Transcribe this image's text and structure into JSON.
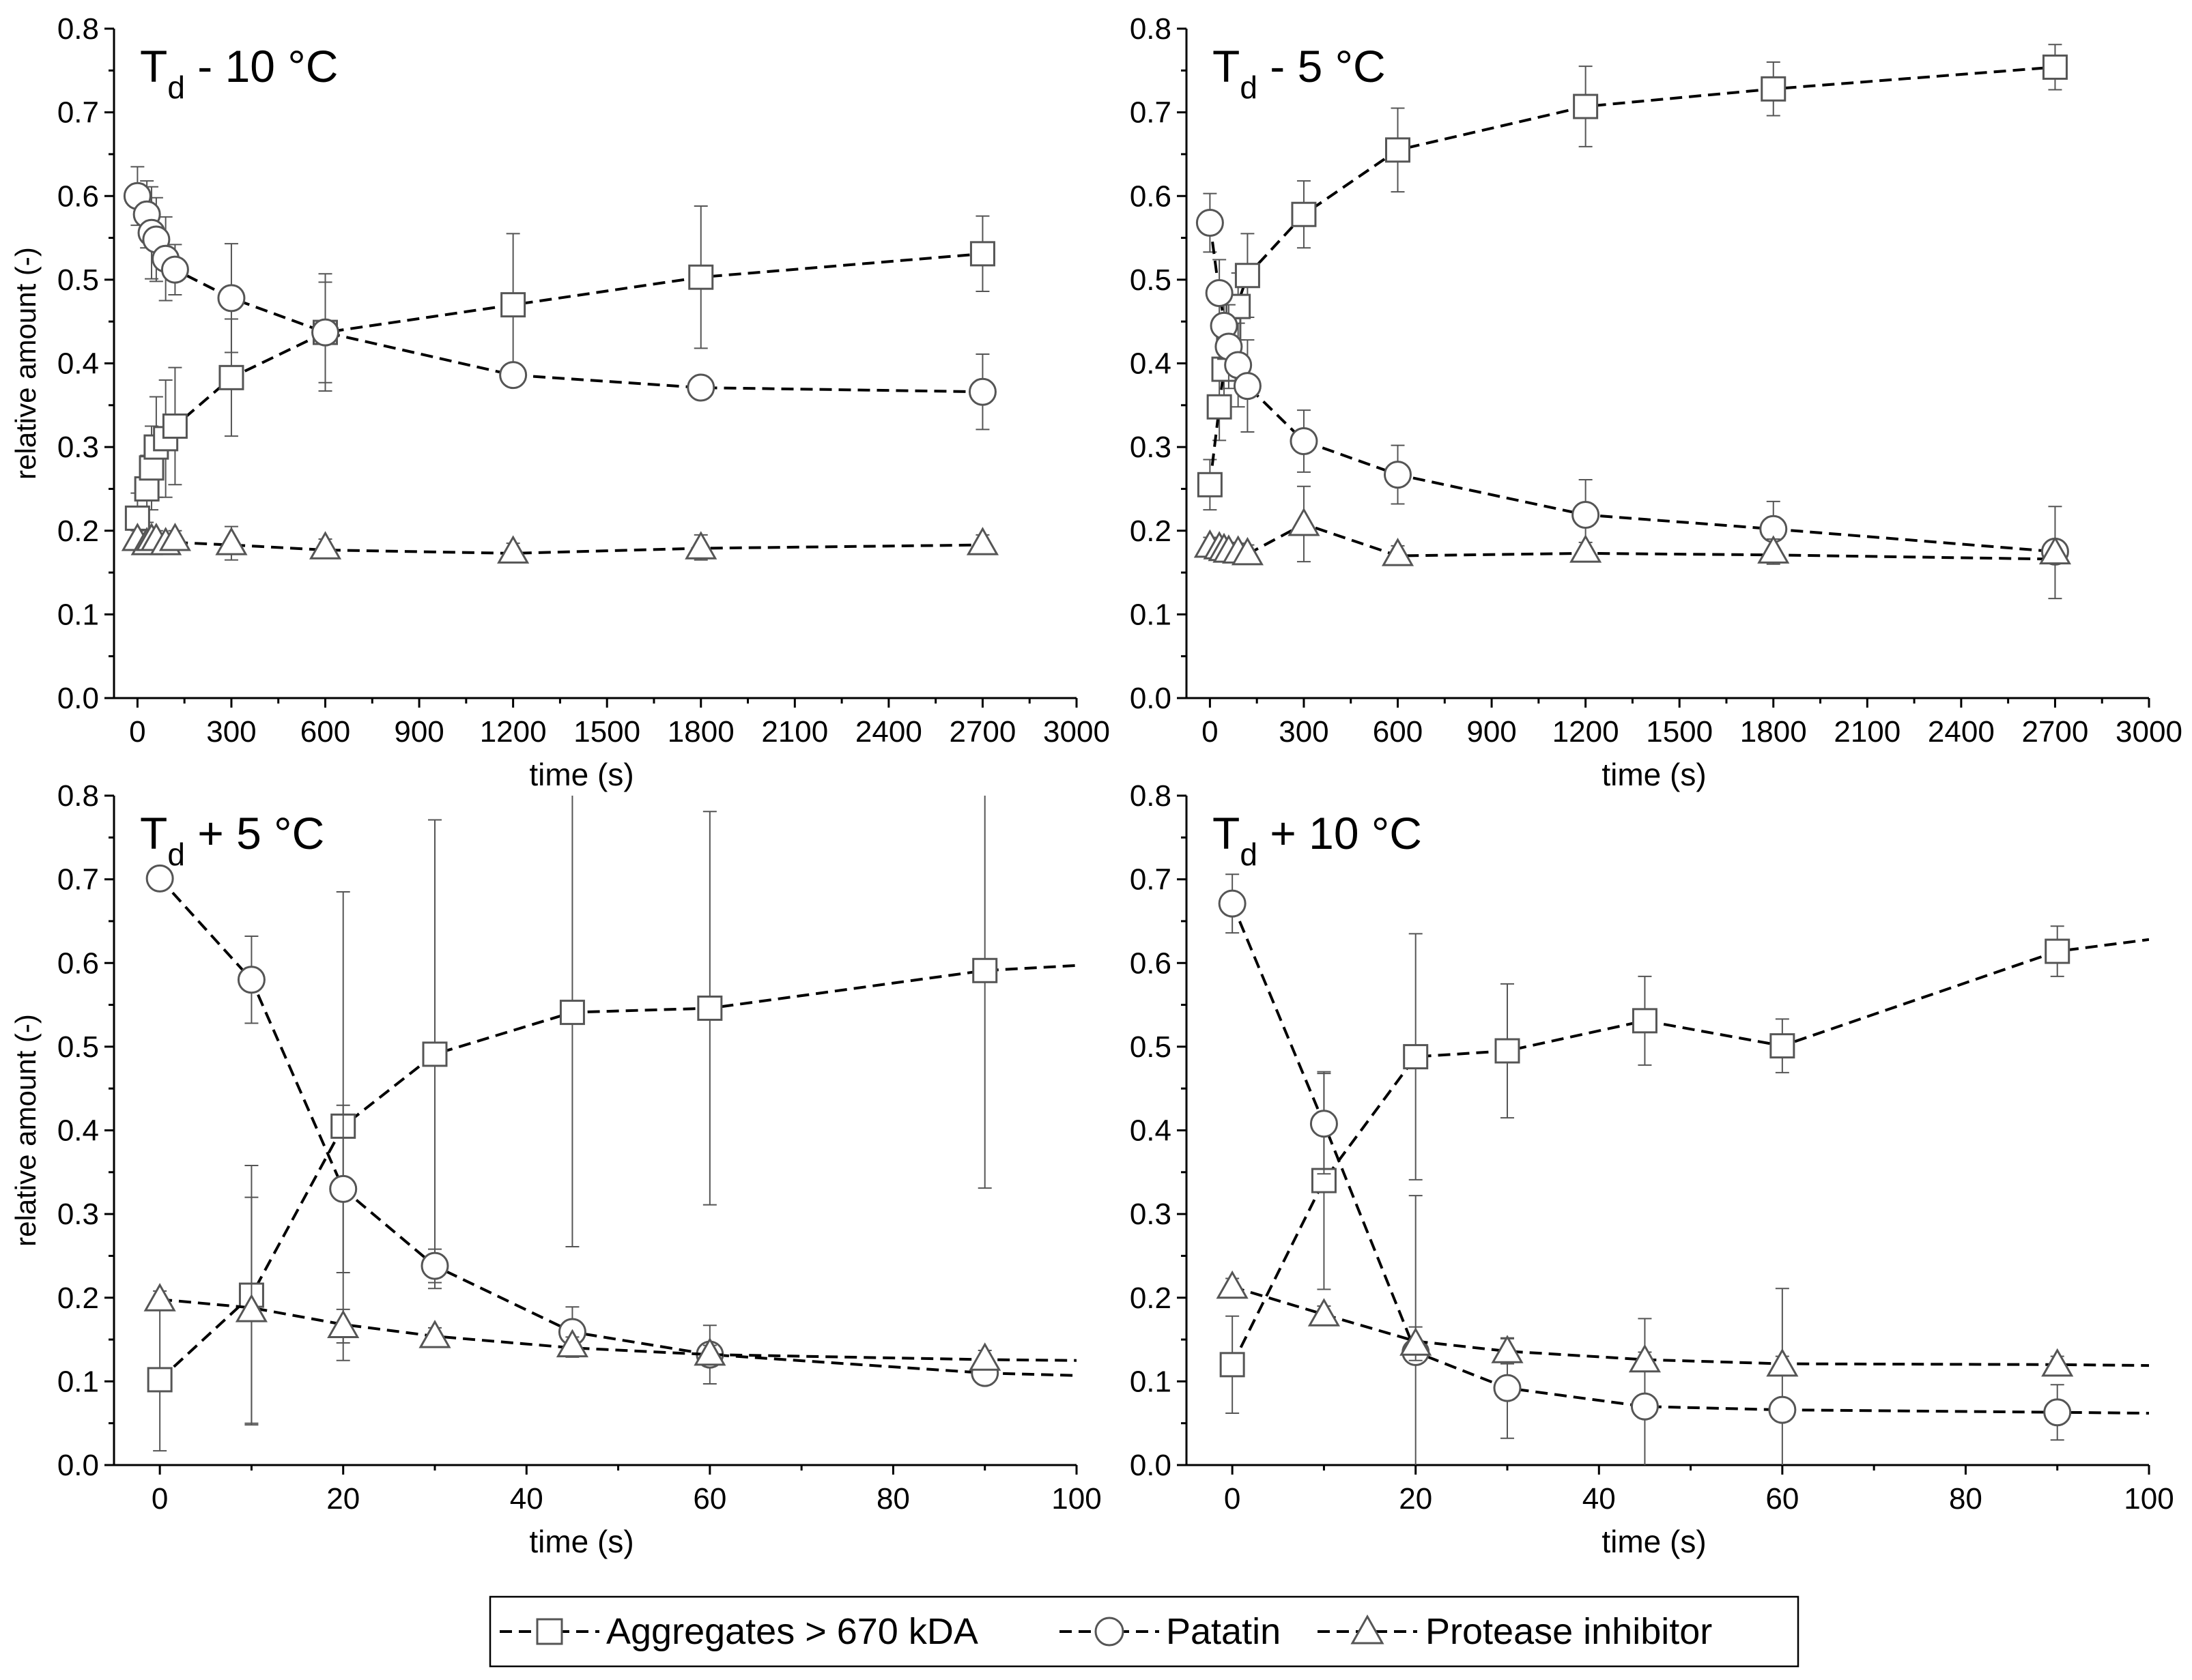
{
  "legend": {
    "items": [
      {
        "label": "Aggregates > 670 kDA",
        "marker": "square"
      },
      {
        "label": "Patatin",
        "marker": "circle"
      },
      {
        "label": "Protease inhibitor",
        "marker": "triangle"
      }
    ]
  },
  "colors": {
    "axis": "#000000",
    "marker": "#555555",
    "line": "#000000",
    "error": "#555555"
  },
  "chart_data": [
    {
      "type": "scatter",
      "panel": "top-left",
      "title_main": "T",
      "title_sub": "d",
      "title_rest": " - 10 °C",
      "xlabel": "time (s)",
      "ylabel": "relative amount (-)",
      "xlim": [
        -75,
        3000
      ],
      "ylim": [
        0,
        0.8
      ],
      "xticks": [
        0,
        300,
        600,
        900,
        1200,
        1500,
        1800,
        2100,
        2400,
        2700,
        3000
      ],
      "yticks": [
        0.0,
        0.1,
        0.2,
        0.3,
        0.4,
        0.5,
        0.6,
        0.7,
        0.8
      ],
      "xtick_labels": [
        "0",
        "300",
        "600",
        "900",
        "1200",
        "1500",
        "1800",
        "2100",
        "2400",
        "2700",
        "3000"
      ],
      "ytick_labels": [
        "0.0",
        "0.1",
        "0.2",
        "0.3",
        "0.4",
        "0.5",
        "0.6",
        "0.7",
        "0.8"
      ],
      "series": [
        {
          "name": "Aggregates > 670 kDA",
          "marker": "square",
          "x": [
            0,
            30,
            45,
            60,
            90,
            120,
            300,
            600,
            1200,
            1800,
            2700
          ],
          "y": [
            0.215,
            0.25,
            0.275,
            0.3,
            0.31,
            0.325,
            0.383,
            0.437,
            0.47,
            0.503,
            0.531
          ],
          "err": [
            0.03,
            0.04,
            0.05,
            0.06,
            0.07,
            0.07,
            0.07,
            0.06,
            0.085,
            0.085,
            0.045
          ],
          "fit": [
            [
              0,
              0.215
            ],
            [
              30,
              0.25
            ],
            [
              60,
              0.3
            ],
            [
              120,
              0.325
            ],
            [
              300,
              0.383
            ],
            [
              600,
              0.437
            ],
            [
              1200,
              0.47
            ],
            [
              1800,
              0.503
            ],
            [
              2700,
              0.531
            ]
          ]
        },
        {
          "name": "Patatin",
          "marker": "circle",
          "x": [
            0,
            30,
            45,
            60,
            90,
            120,
            300,
            600,
            1200,
            1800,
            2700
          ],
          "y": [
            0.6,
            0.578,
            0.556,
            0.548,
            0.525,
            0.512,
            0.478,
            0.437,
            0.386,
            0.371,
            0.366
          ],
          "err": [
            0.035,
            0.04,
            0.055,
            0.05,
            0.05,
            0.03,
            0.065,
            0.07,
            0.005,
            0.005,
            0.045
          ],
          "fit": [
            [
              0,
              0.6
            ],
            [
              60,
              0.548
            ],
            [
              120,
              0.512
            ],
            [
              300,
              0.478
            ],
            [
              600,
              0.437
            ],
            [
              1200,
              0.386
            ],
            [
              1800,
              0.371
            ],
            [
              2700,
              0.366
            ]
          ]
        },
        {
          "name": "Protease inhibitor",
          "marker": "triangle",
          "x": [
            0,
            30,
            45,
            60,
            90,
            120,
            300,
            600,
            1200,
            1800,
            2700
          ],
          "y": [
            0.19,
            0.185,
            0.19,
            0.19,
            0.185,
            0.19,
            0.185,
            0.18,
            0.175,
            0.18,
            0.185
          ],
          "err": [
            0.01,
            0.01,
            0.01,
            0.01,
            0.01,
            0.01,
            0.02,
            0.01,
            0.01,
            0.015,
            0.01
          ],
          "fit": [
            [
              0,
              0.19
            ],
            [
              120,
              0.186
            ],
            [
              300,
              0.183
            ],
            [
              600,
              0.177
            ],
            [
              1200,
              0.173
            ],
            [
              1800,
              0.179
            ],
            [
              2700,
              0.183
            ]
          ]
        }
      ]
    },
    {
      "type": "scatter",
      "panel": "top-right",
      "title_main": "T",
      "title_sub": "d",
      "title_rest": " - 5 °C",
      "xlabel": "time (s)",
      "ylabel": "",
      "xlim": [
        -75,
        3000
      ],
      "ylim": [
        0,
        0.8
      ],
      "xticks": [
        0,
        300,
        600,
        900,
        1200,
        1500,
        1800,
        2100,
        2400,
        2700,
        3000
      ],
      "yticks": [
        0.0,
        0.1,
        0.2,
        0.3,
        0.4,
        0.5,
        0.6,
        0.7,
        0.8
      ],
      "xtick_labels": [
        "0",
        "300",
        "600",
        "900",
        "1200",
        "1500",
        "1800",
        "2100",
        "2400",
        "2700",
        "3000"
      ],
      "ytick_labels": [
        "0.0",
        "0.1",
        "0.2",
        "0.3",
        "0.4",
        "0.5",
        "0.6",
        "0.7",
        "0.8"
      ],
      "series": [
        {
          "name": "Aggregates > 670 kDA",
          "marker": "square",
          "x": [
            0,
            30,
            45,
            60,
            90,
            120,
            300,
            600,
            1200,
            1800,
            2700
          ],
          "y": [
            0.255,
            0.348,
            0.393,
            0.44,
            0.468,
            0.505,
            0.578,
            0.655,
            0.707,
            0.728,
            0.754
          ],
          "err": [
            0.03,
            0.04,
            0.04,
            0.04,
            0.04,
            0.05,
            0.04,
            0.05,
            0.048,
            0.032,
            0.027
          ],
          "fit": [
            [
              0,
              0.255
            ],
            [
              30,
              0.348
            ],
            [
              60,
              0.44
            ],
            [
              120,
              0.505
            ],
            [
              300,
              0.578
            ],
            [
              600,
              0.655
            ],
            [
              1200,
              0.707
            ],
            [
              1800,
              0.728
            ],
            [
              2700,
              0.754
            ]
          ]
        },
        {
          "name": "Patatin",
          "marker": "circle",
          "x": [
            0,
            30,
            45,
            60,
            90,
            120,
            300,
            600,
            1200,
            1800,
            2700
          ],
          "y": [
            0.568,
            0.484,
            0.445,
            0.42,
            0.398,
            0.373,
            0.307,
            0.267,
            0.219,
            0.202,
            0.175
          ],
          "err": [
            0.035,
            0.04,
            0.04,
            0.05,
            0.05,
            0.055,
            0.037,
            0.035,
            0.042,
            0.033,
            0.01
          ],
          "fit": [
            [
              0,
              0.568
            ],
            [
              30,
              0.484
            ],
            [
              60,
              0.42
            ],
            [
              120,
              0.373
            ],
            [
              300,
              0.307
            ],
            [
              600,
              0.267
            ],
            [
              1200,
              0.219
            ],
            [
              1800,
              0.202
            ],
            [
              2700,
              0.175
            ]
          ]
        },
        {
          "name": "Protease inhibitor",
          "marker": "triangle",
          "x": [
            0,
            30,
            45,
            60,
            90,
            120,
            300,
            600,
            1200,
            1800,
            2700
          ],
          "y": [
            0.182,
            0.18,
            0.178,
            0.176,
            0.175,
            0.173,
            0.208,
            0.172,
            0.176,
            0.175,
            0.174
          ],
          "err": [
            0.01,
            0.01,
            0.01,
            0.01,
            0.01,
            0.01,
            0.045,
            0.01,
            0.01,
            0.015,
            0.055
          ],
          "fit": [
            [
              0,
              0.182
            ],
            [
              120,
              0.172
            ],
            [
              300,
              0.208
            ],
            [
              600,
              0.17
            ],
            [
              1200,
              0.173
            ],
            [
              1800,
              0.171
            ],
            [
              2700,
              0.166
            ]
          ]
        }
      ]
    },
    {
      "type": "scatter",
      "panel": "bottom-left",
      "title_main": "T",
      "title_sub": "d",
      "title_rest": " + 5 °C",
      "xlabel": "time (s)",
      "ylabel": "relative amount (-)",
      "xlim": [
        -5,
        100
      ],
      "ylim": [
        0,
        0.8
      ],
      "xticks": [
        0,
        20,
        40,
        60,
        80,
        100
      ],
      "yticks": [
        0.0,
        0.1,
        0.2,
        0.3,
        0.4,
        0.5,
        0.6,
        0.7,
        0.8
      ],
      "xtick_labels": [
        "0",
        "20",
        "40",
        "60",
        "80",
        "100"
      ],
      "ytick_labels": [
        "0.0",
        "0.1",
        "0.2",
        "0.3",
        "0.4",
        "0.5",
        "0.6",
        "0.7",
        "0.8"
      ],
      "series": [
        {
          "name": "Aggregates > 670 kDA",
          "marker": "square",
          "x": [
            0,
            10,
            20,
            30,
            45,
            60,
            90
          ],
          "y": [
            0.102,
            0.203,
            0.405,
            0.491,
            0.541,
            0.546,
            0.591
          ],
          "err": [
            0.085,
            0.155,
            0.28,
            0.28,
            0.28,
            0.235,
            0.26
          ],
          "fit": [
            [
              0,
              0.102
            ],
            [
              10,
              0.203
            ],
            [
              20,
              0.405
            ],
            [
              30,
              0.491
            ],
            [
              45,
              0.541
            ],
            [
              60,
              0.546
            ],
            [
              90,
              0.591
            ],
            [
              100,
              0.597
            ]
          ]
        },
        {
          "name": "Patatin",
          "marker": "circle",
          "x": [
            0,
            10,
            20,
            30,
            45,
            60,
            90
          ],
          "y": [
            0.701,
            0.58,
            0.33,
            0.238,
            0.159,
            0.132,
            0.11
          ],
          "err": [
            0.005,
            0.052,
            0.1,
            0.02,
            0.03,
            0.035,
            0.01
          ],
          "fit": [
            [
              0,
              0.701
            ],
            [
              10,
              0.58
            ],
            [
              20,
              0.33
            ],
            [
              30,
              0.238
            ],
            [
              45,
              0.159
            ],
            [
              60,
              0.132
            ],
            [
              90,
              0.11
            ],
            [
              100,
              0.107
            ]
          ]
        },
        {
          "name": "Protease inhibitor",
          "marker": "triangle",
          "x": [
            0,
            10,
            20,
            30,
            45,
            60,
            90
          ],
          "y": [
            0.198,
            0.185,
            0.166,
            0.154,
            0.143,
            0.133,
            0.127
          ],
          "err": [
            0.01,
            0.135,
            0.02,
            0.01,
            0.01,
            0.01,
            0.01
          ],
          "fit": [
            [
              0,
              0.198
            ],
            [
              10,
              0.188
            ],
            [
              20,
              0.168
            ],
            [
              30,
              0.154
            ],
            [
              45,
              0.14
            ],
            [
              60,
              0.132
            ],
            [
              90,
              0.126
            ],
            [
              100,
              0.125
            ]
          ]
        }
      ]
    },
    {
      "type": "scatter",
      "panel": "bottom-right",
      "title_main": "T",
      "title_sub": "d",
      "title_rest": " + 10 °C",
      "xlabel": "time (s)",
      "ylabel": "",
      "xlim": [
        -5,
        100
      ],
      "ylim": [
        0,
        0.8
      ],
      "xticks": [
        0,
        20,
        40,
        60,
        80,
        100
      ],
      "yticks": [
        0.0,
        0.1,
        0.2,
        0.3,
        0.4,
        0.5,
        0.6,
        0.7,
        0.8
      ],
      "xtick_labels": [
        "0",
        "20",
        "40",
        "60",
        "80",
        "100"
      ],
      "ytick_labels": [
        "0.0",
        "0.1",
        "0.2",
        "0.3",
        "0.4",
        "0.5",
        "0.6",
        "0.7",
        "0.8"
      ],
      "series": [
        {
          "name": "Aggregates > 670 kDA",
          "marker": "square",
          "x": [
            0,
            10,
            20,
            30,
            45,
            60,
            90
          ],
          "y": [
            0.12,
            0.34,
            0.488,
            0.495,
            0.531,
            0.501,
            0.614
          ],
          "err": [
            0.058,
            0.13,
            0.147,
            0.08,
            0.053,
            0.032,
            0.03
          ],
          "fit": [
            [
              0,
              0.12
            ],
            [
              10,
              0.34
            ],
            [
              20,
              0.488
            ],
            [
              30,
              0.495
            ],
            [
              45,
              0.531
            ],
            [
              60,
              0.501
            ],
            [
              90,
              0.614
            ],
            [
              100,
              0.628
            ]
          ]
        },
        {
          "name": "Patatin",
          "marker": "circle",
          "x": [
            0,
            10,
            20,
            30,
            45,
            60,
            90
          ],
          "y": [
            0.671,
            0.408,
            0.135,
            0.092,
            0.07,
            0.066,
            0.063
          ],
          "err": [
            0.035,
            0.06,
            0.187,
            0.06,
            0.105,
            0.145,
            0.033
          ],
          "fit": [
            [
              0,
              0.671
            ],
            [
              10,
              0.408
            ],
            [
              20,
              0.135
            ],
            [
              30,
              0.092
            ],
            [
              45,
              0.07
            ],
            [
              60,
              0.066
            ],
            [
              90,
              0.063
            ],
            [
              100,
              0.062
            ]
          ]
        },
        {
          "name": "Protease inhibitor",
          "marker": "triangle",
          "x": [
            0,
            10,
            20,
            30,
            45,
            60,
            90
          ],
          "y": [
            0.213,
            0.18,
            0.145,
            0.136,
            0.125,
            0.12,
            0.12
          ],
          "err": [
            0.01,
            0.01,
            0.02,
            0.015,
            0.01,
            0.01,
            0.01
          ],
          "fit": [
            [
              0,
              0.213
            ],
            [
              10,
              0.18
            ],
            [
              20,
              0.148
            ],
            [
              30,
              0.136
            ],
            [
              45,
              0.126
            ],
            [
              60,
              0.121
            ],
            [
              90,
              0.12
            ],
            [
              100,
              0.119
            ]
          ]
        }
      ]
    }
  ]
}
